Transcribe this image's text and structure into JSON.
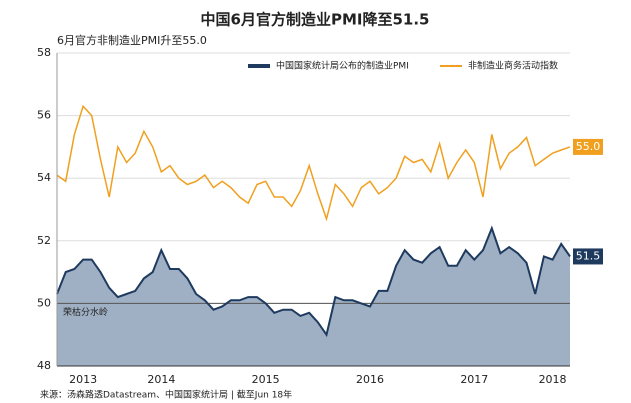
{
  "chart_data": {
    "type": "line",
    "title": "中国6月官方制造业PMI降至51.5",
    "subtitle": "6月官方非制造业PMI升至55.0",
    "source": "来源：汤森路透Datastream、中国国家统计局 | 截至Jun 18年",
    "x": [
      2013.5,
      2013.583,
      2013.667,
      2013.75,
      2013.833,
      2013.917,
      2014,
      2014.083,
      2014.167,
      2014.25,
      2014.333,
      2014.417,
      2014.5,
      2014.583,
      2014.667,
      2014.75,
      2014.833,
      2014.917,
      2015,
      2015.083,
      2015.167,
      2015.25,
      2015.333,
      2015.417,
      2015.5,
      2015.583,
      2015.667,
      2015.75,
      2015.833,
      2015.917,
      2016,
      2016.083,
      2016.167,
      2016.25,
      2016.333,
      2016.417,
      2016.5,
      2016.583,
      2016.667,
      2016.75,
      2016.833,
      2016.917,
      2017,
      2017.083,
      2017.167,
      2017.25,
      2017.333,
      2017.417,
      2017.5,
      2017.583,
      2017.667,
      2017.75,
      2017.833,
      2017.917,
      2018,
      2018.083,
      2018.167,
      2018.25,
      2018.333,
      2018.417
    ],
    "xlim": [
      2013.5,
      2018.417
    ],
    "xticks": [
      {
        "value": 2013.75,
        "label": "2013"
      },
      {
        "value": 2014.5,
        "label": "2014"
      },
      {
        "value": 2015.5,
        "label": "2015"
      },
      {
        "value": 2016.5,
        "label": "2016"
      },
      {
        "value": 2017.5,
        "label": "2017"
      },
      {
        "value": 2018.25,
        "label": "2018"
      }
    ],
    "ylim": [
      48,
      58
    ],
    "yticks": [
      48,
      50,
      52,
      54,
      56,
      58
    ],
    "grid": true,
    "legend": "top-right",
    "reference_line": {
      "value": 50,
      "label": "荣枯分水岭"
    },
    "series": [
      {
        "name": "中国国家统计局公布的制造业PMI",
        "color": "#1f3a5f",
        "fill": "#9fb0c4",
        "area": true,
        "end_label": "51.5",
        "values": [
          50.3,
          51.0,
          51.1,
          51.4,
          51.4,
          51.0,
          50.5,
          50.2,
          50.3,
          50.4,
          50.8,
          51.0,
          51.7,
          51.1,
          51.1,
          50.8,
          50.3,
          50.1,
          49.8,
          49.9,
          50.1,
          50.1,
          50.2,
          50.2,
          50.0,
          49.7,
          49.8,
          49.8,
          49.6,
          49.7,
          49.4,
          49.0,
          50.2,
          50.1,
          50.1,
          50.0,
          49.9,
          50.4,
          50.4,
          51.2,
          51.7,
          51.4,
          51.3,
          51.6,
          51.8,
          51.2,
          51.2,
          51.7,
          51.4,
          51.7,
          52.4,
          51.6,
          51.8,
          51.6,
          51.3,
          50.3,
          51.5,
          51.4,
          51.9,
          51.5
        ]
      },
      {
        "name": "非制造业商务活动指数",
        "color": "#f0a01e",
        "area": false,
        "end_label": "55.0",
        "values": [
          54.1,
          53.9,
          55.4,
          56.3,
          56.0,
          54.6,
          53.4,
          55.0,
          54.5,
          54.8,
          55.5,
          55.0,
          54.2,
          54.4,
          54.0,
          53.8,
          53.9,
          54.1,
          53.7,
          53.9,
          53.7,
          53.4,
          53.2,
          53.8,
          53.9,
          53.4,
          53.4,
          53.1,
          53.6,
          54.4,
          53.5,
          52.7,
          53.8,
          53.5,
          53.1,
          53.7,
          53.9,
          53.5,
          53.7,
          54.0,
          54.7,
          54.5,
          54.6,
          54.2,
          55.1,
          54.0,
          54.5,
          54.9,
          54.5,
          53.4,
          55.4,
          54.3,
          54.8,
          55.0,
          55.3,
          54.4,
          54.6,
          54.8,
          54.9,
          55.0
        ]
      }
    ]
  }
}
